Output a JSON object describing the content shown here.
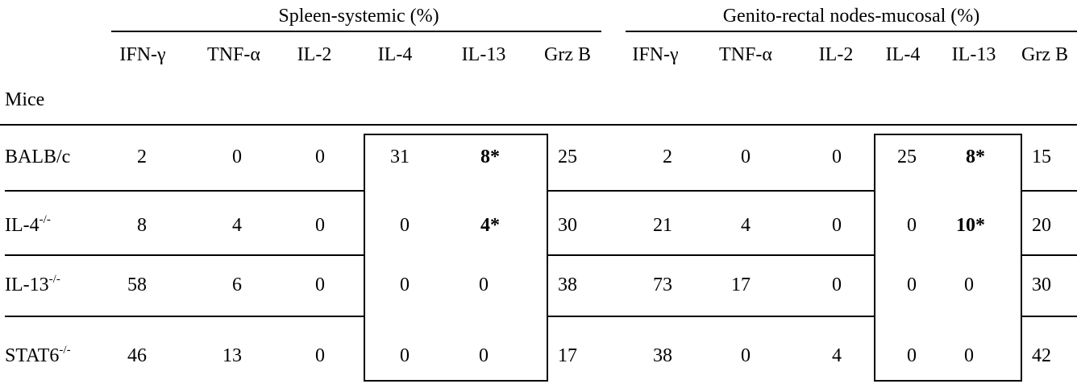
{
  "groups": {
    "spleen": "Spleen-systemic (%)",
    "genito": "Genito-rectal nodes-mucosal (%)"
  },
  "columns": [
    "IFN-γ",
    "TNF-α",
    "IL-2",
    "IL-4",
    "IL-13",
    "Grz B",
    "IFN-γ",
    "TNF-α",
    "IL-2",
    "IL-4",
    "IL-13",
    "Grz B"
  ],
  "row_header": "Mice",
  "rows": [
    {
      "name": "BALB/c",
      "sup": "",
      "values": [
        "2",
        "0",
        "0",
        "31",
        "8*",
        "25",
        "2",
        "0",
        "0",
        "25",
        "8*",
        "15"
      ]
    },
    {
      "name": "IL-4",
      "sup": "-/-",
      "values": [
        "8",
        "4",
        "0",
        "0",
        "4*",
        "30",
        "21",
        "4",
        "0",
        "0",
        "10*",
        "20"
      ]
    },
    {
      "name": "IL-13",
      "sup": "-/-",
      "values": [
        "58",
        "6",
        "0",
        "0",
        "0",
        "38",
        "73",
        "17",
        "0",
        "0",
        "0",
        "30"
      ]
    },
    {
      "name": "STAT6",
      "sup": "-/-",
      "values": [
        "46",
        "13",
        "0",
        "0",
        "0",
        "17",
        "38",
        "0",
        "4",
        "0",
        "0",
        "42"
      ]
    }
  ]
}
